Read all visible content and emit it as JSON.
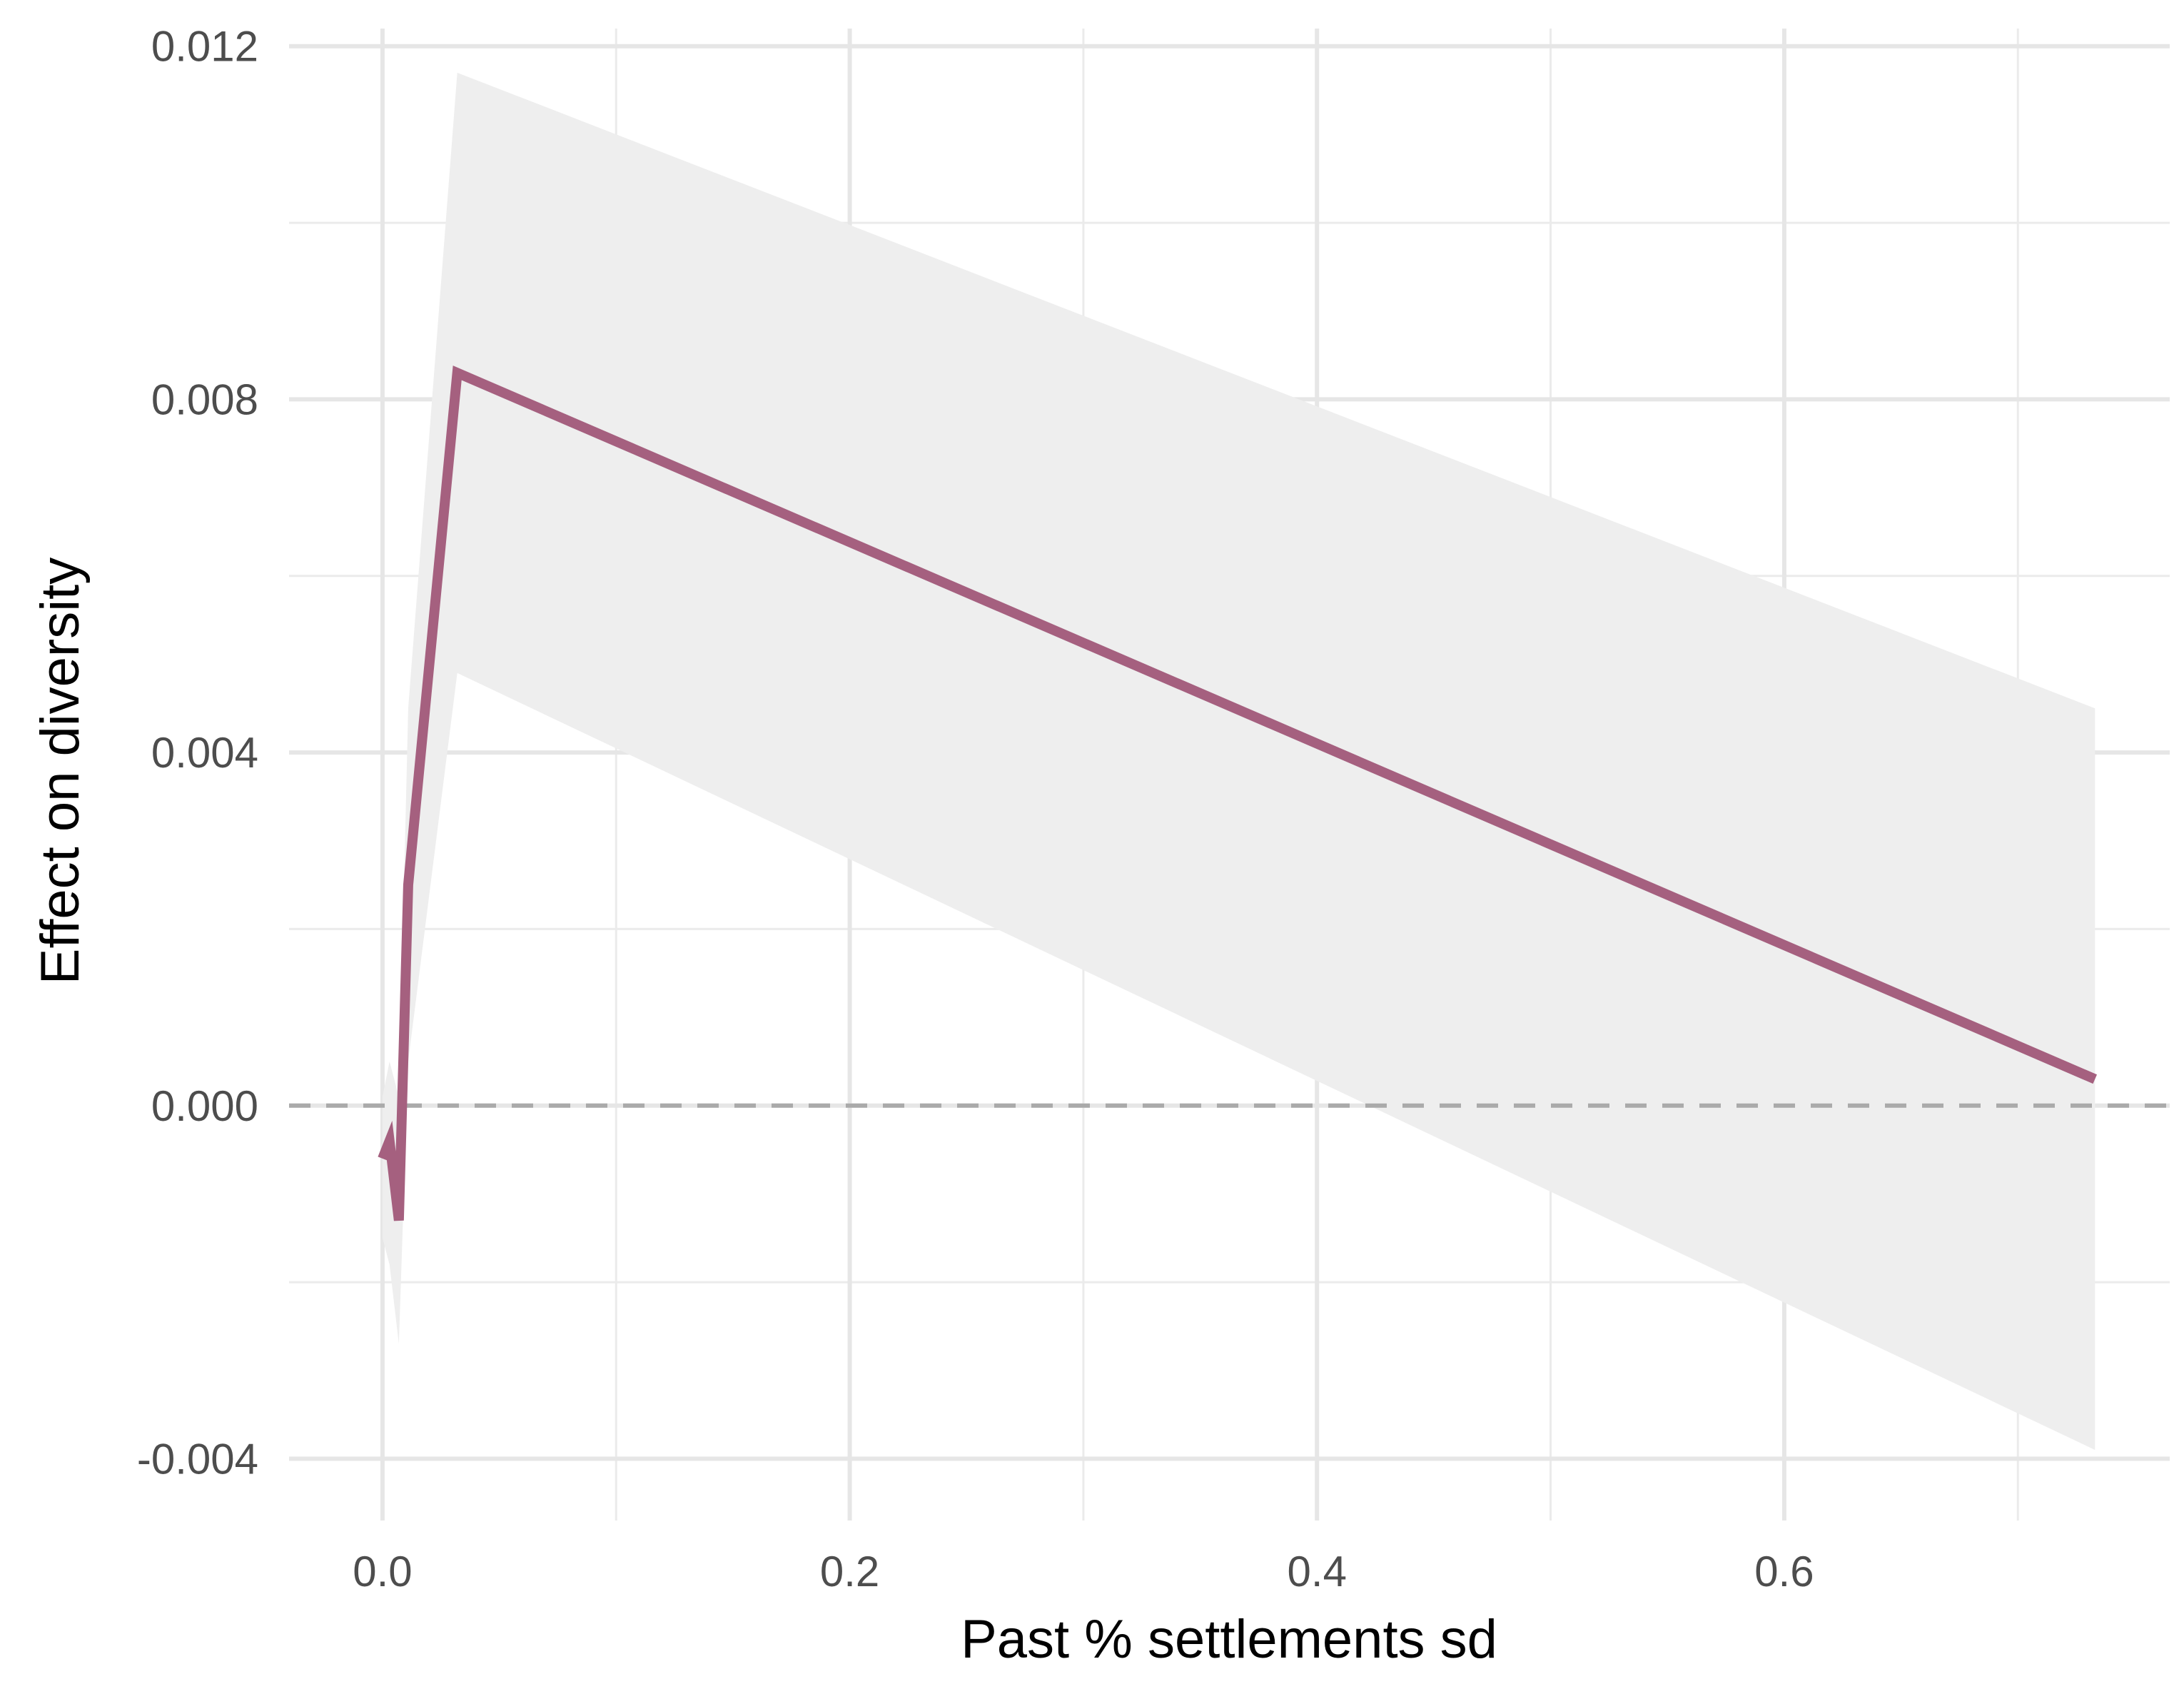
{
  "chart_data": {
    "type": "line",
    "title": "",
    "xlabel": "Past % settlements sd",
    "ylabel": "Effect on diversity",
    "xlim": [
      -0.04,
      0.765
    ],
    "ylim": [
      -0.0047,
      0.0122
    ],
    "x_ticks": [
      0.0,
      0.2,
      0.4,
      0.6
    ],
    "x_tick_labels": [
      "0.0",
      "0.2",
      "0.4",
      "0.6"
    ],
    "y_ticks": [
      -0.004,
      0.0,
      0.004,
      0.008,
      0.012
    ],
    "y_tick_labels": [
      "-0.004",
      "0.000",
      "0.004",
      "0.008",
      "0.012"
    ],
    "x_minor_ticks": [
      0.1,
      0.3,
      0.5,
      0.7
    ],
    "y_minor_ticks": [
      -0.002,
      0.002,
      0.006,
      0.01
    ],
    "grid": true,
    "reference_line": {
      "y": 0.0,
      "style": "dashed",
      "color": "#aaaaaa"
    },
    "line_color": "#a5607f",
    "band_color": "#eeeeee",
    "series": [
      {
        "x": [
          0.0,
          0.003,
          0.007,
          0.011,
          0.032,
          0.733
        ],
        "y": [
          -0.0006,
          -0.0004,
          -0.0013,
          0.0025,
          0.0083,
          0.0003
        ],
        "lower": [
          -0.0015,
          -0.0018,
          -0.0027,
          0.0005,
          0.0049,
          -0.0039
        ],
        "upper": [
          0.0001,
          0.0005,
          0.0001,
          0.0045,
          0.0117,
          0.0045
        ]
      }
    ]
  }
}
